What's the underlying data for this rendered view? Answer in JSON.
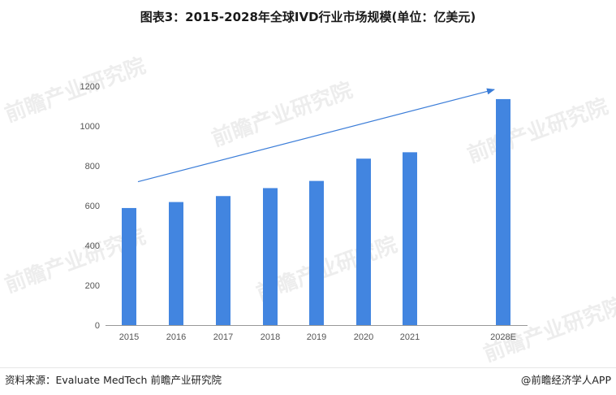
{
  "header": {
    "title": "图表3：2015-2028年全球IVD行业市场规模(单位：亿美元)"
  },
  "watermark": {
    "text": "前瞻产业研究院"
  },
  "footer": {
    "source": "资料来源：Evaluate MedTech 前瞻产业研究院",
    "brand": "@前瞻经济学人APP"
  },
  "colors": {
    "bar": "#4285E0",
    "trend": "#3B7DD8",
    "axis": "#999999"
  },
  "chart_data": {
    "type": "bar",
    "title": "图表3：2015-2028年全球IVD行业市场规模(单位：亿美元)",
    "categories": [
      "2015",
      "2016",
      "2017",
      "2018",
      "2019",
      "2020",
      "2021",
      "2028E"
    ],
    "values": [
      588,
      618,
      648,
      688,
      724,
      836,
      868,
      1135
    ],
    "ylim": [
      0,
      1200
    ],
    "yticks": [
      0,
      200,
      400,
      600,
      800,
      1000,
      1200
    ],
    "xlabel": "",
    "ylabel": "",
    "grid": false,
    "annotation": "upward trend arrow"
  }
}
